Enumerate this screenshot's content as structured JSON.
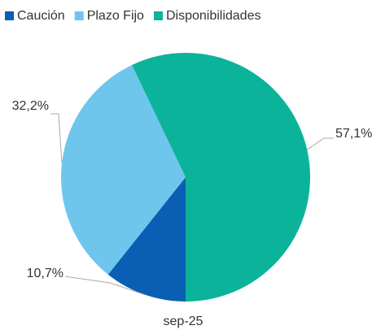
{
  "chart_data": {
    "type": "pie",
    "categories": [
      "Caución",
      "Plazo Fijo",
      "Disponibilidades"
    ],
    "values": [
      10.7,
      32.2,
      57.1
    ],
    "value_labels": [
      "10,7%",
      "32,2%",
      "57,1%"
    ],
    "colors": [
      "#0a5fb4",
      "#6ec6ec",
      "#0bb39b"
    ],
    "xlabel": "sep-25",
    "legend": "top-left"
  }
}
